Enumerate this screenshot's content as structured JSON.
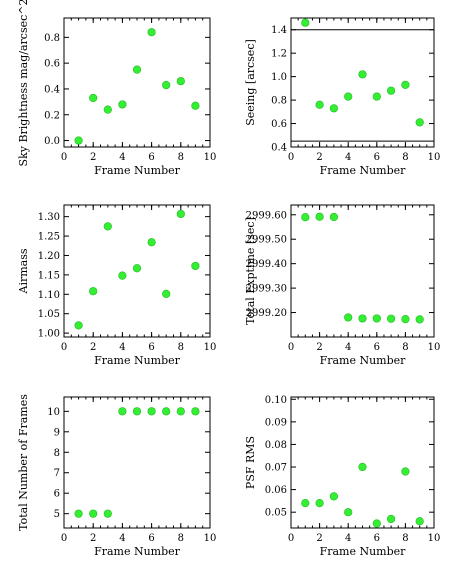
{
  "chart_data": [
    {
      "type": "scatter",
      "xlabel": "Frame Number",
      "ylabel": "Sky Brightness mag/arcsec^2",
      "xlim": [
        0,
        10
      ],
      "ylim": [
        -0.05,
        0.95
      ],
      "xticks": [
        0,
        2,
        4,
        6,
        8,
        10
      ],
      "yticks": [
        0.0,
        0.2,
        0.4,
        0.6,
        0.8
      ],
      "ytick_labels": [
        "0.0",
        "0.2",
        "0.4",
        "0.6",
        "0.8"
      ],
      "x": [
        1,
        2,
        3,
        4,
        5,
        6,
        7,
        8,
        9
      ],
      "y": [
        0.0,
        0.33,
        0.24,
        0.28,
        0.55,
        0.84,
        0.43,
        0.46,
        0.27
      ],
      "hlines": []
    },
    {
      "type": "scatter",
      "xlabel": "Frame Number",
      "ylabel": "Seeing [arcsec]",
      "xlim": [
        0,
        10
      ],
      "ylim": [
        0.4,
        1.5
      ],
      "xticks": [
        0,
        2,
        4,
        6,
        8,
        10
      ],
      "yticks": [
        0.4,
        0.6,
        0.8,
        1.0,
        1.2,
        1.4
      ],
      "ytick_labels": [
        "0.4",
        "0.6",
        "0.8",
        "1.0",
        "1.2",
        "1.4"
      ],
      "x": [
        1,
        2,
        3,
        4,
        5,
        6,
        7,
        8,
        9
      ],
      "y": [
        1.46,
        0.76,
        0.73,
        0.83,
        1.02,
        0.83,
        0.88,
        0.93,
        0.61
      ],
      "hlines": [
        1.4,
        0.45
      ]
    },
    {
      "type": "scatter",
      "xlabel": "Frame Number",
      "ylabel": "Airmass",
      "xlim": [
        0,
        10
      ],
      "ylim": [
        0.99,
        1.33
      ],
      "xticks": [
        0,
        2,
        4,
        6,
        8,
        10
      ],
      "yticks": [
        1.0,
        1.05,
        1.1,
        1.15,
        1.2,
        1.25,
        1.3
      ],
      "ytick_labels": [
        "1.00",
        "1.05",
        "1.10",
        "1.15",
        "1.20",
        "1.25",
        "1.30"
      ],
      "x": [
        1,
        2,
        3,
        4,
        5,
        6,
        7,
        8,
        9
      ],
      "y": [
        1.02,
        1.108,
        1.275,
        1.148,
        1.167,
        1.234,
        1.101,
        1.307,
        1.173
      ],
      "hlines": []
    },
    {
      "type": "scatter",
      "xlabel": "Frame Number",
      "ylabel": "Total Exptime [sec]",
      "xlim": [
        0,
        10
      ],
      "ylim": [
        2999.1,
        2999.64
      ],
      "xticks": [
        0,
        2,
        4,
        6,
        8,
        10
      ],
      "yticks": [
        2999.2,
        2999.3,
        2999.4,
        2999.5,
        2999.6
      ],
      "ytick_labels": [
        "2999.20",
        "2999.30",
        "2999.40",
        "2999.50",
        "2999.60"
      ],
      "x": [
        1,
        2,
        3,
        4,
        5,
        6,
        7,
        8,
        9
      ],
      "y": [
        2999.59,
        2999.592,
        2999.591,
        2999.18,
        2999.176,
        2999.176,
        2999.175,
        2999.173,
        2999.172
      ],
      "hlines": []
    },
    {
      "type": "scatter",
      "xlabel": "Frame Number",
      "ylabel": "Total Number of Frames",
      "xlim": [
        0,
        10
      ],
      "ylim": [
        4.3,
        10.7
      ],
      "xticks": [
        0,
        2,
        4,
        6,
        8,
        10
      ],
      "yticks": [
        5,
        6,
        7,
        8,
        9,
        10
      ],
      "ytick_labels": [
        "5",
        "6",
        "7",
        "8",
        "9",
        "10"
      ],
      "x": [
        1,
        2,
        3,
        4,
        5,
        6,
        7,
        8,
        9
      ],
      "y": [
        5,
        5,
        5,
        10,
        10,
        10,
        10,
        10,
        10
      ],
      "hlines": []
    },
    {
      "type": "scatter",
      "xlabel": "Frame Number",
      "ylabel": "PSF RMS",
      "xlim": [
        0,
        10
      ],
      "ylim": [
        0.043,
        0.101
      ],
      "xticks": [
        0,
        2,
        4,
        6,
        8,
        10
      ],
      "yticks": [
        0.05,
        0.06,
        0.07,
        0.08,
        0.09,
        0.1
      ],
      "ytick_labels": [
        "0.05",
        "0.06",
        "0.07",
        "0.08",
        "0.09",
        "0.10"
      ],
      "x": [
        1,
        2,
        3,
        4,
        5,
        6,
        7,
        8,
        9
      ],
      "y": [
        0.054,
        0.054,
        0.057,
        0.05,
        0.07,
        0.045,
        0.047,
        0.068,
        0.046
      ],
      "hlines": []
    }
  ]
}
